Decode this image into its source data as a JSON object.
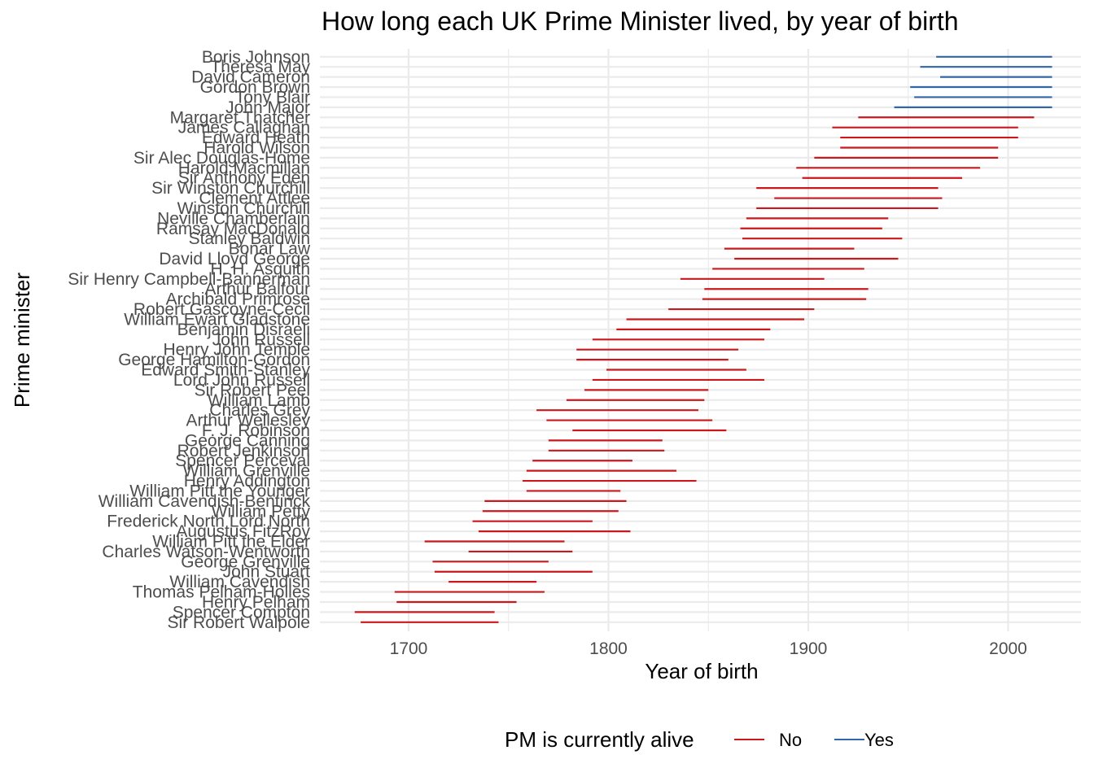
{
  "chart_data": {
    "type": "bar",
    "subtype": "range (lifespan segments)",
    "title": "How long each UK Prime Minister lived, by year of birth",
    "xlabel": "Year of birth",
    "ylabel": "Prime minister",
    "xlim": [
      1655,
      2040
    ],
    "xticks": [
      1700,
      1800,
      1900,
      2000
    ],
    "grid": true,
    "legend": {
      "title": "PM is currently alive",
      "position": "bottom",
      "entries": [
        {
          "label": "No",
          "color": "#CB181D"
        },
        {
          "label": "Yes",
          "color": "#3366A6"
        }
      ]
    },
    "series": [
      {
        "name": "No",
        "color": "#CB181D"
      },
      {
        "name": "Yes",
        "color": "#3366A6"
      }
    ],
    "items": [
      {
        "name": "Boris Johnson",
        "start": 1964,
        "end": 2022,
        "alive": "Yes"
      },
      {
        "name": "Theresa May",
        "start": 1956,
        "end": 2022,
        "alive": "Yes"
      },
      {
        "name": "David Cameron",
        "start": 1966,
        "end": 2022,
        "alive": "Yes"
      },
      {
        "name": "Gordon Brown",
        "start": 1951,
        "end": 2022,
        "alive": "Yes"
      },
      {
        "name": "Tony Blair",
        "start": 1953,
        "end": 2022,
        "alive": "Yes"
      },
      {
        "name": "John Major",
        "start": 1943,
        "end": 2022,
        "alive": "Yes"
      },
      {
        "name": "Margaret Thatcher",
        "start": 1925,
        "end": 2013,
        "alive": "No"
      },
      {
        "name": "James Callaghan",
        "start": 1912,
        "end": 2005,
        "alive": "No"
      },
      {
        "name": "Edward Heath",
        "start": 1916,
        "end": 2005,
        "alive": "No"
      },
      {
        "name": "Harold Wilson",
        "start": 1916,
        "end": 1995,
        "alive": "No"
      },
      {
        "name": "Sir Alec Douglas-Home",
        "start": 1903,
        "end": 1995,
        "alive": "No"
      },
      {
        "name": "Harold Macmillan",
        "start": 1894,
        "end": 1986,
        "alive": "No"
      },
      {
        "name": "Sir Anthony Eden",
        "start": 1897,
        "end": 1977,
        "alive": "No"
      },
      {
        "name": "Sir Winston Churchill",
        "start": 1874,
        "end": 1965,
        "alive": "No"
      },
      {
        "name": "Clement Attlee",
        "start": 1883,
        "end": 1967,
        "alive": "No"
      },
      {
        "name": "Winston Churchill",
        "start": 1874,
        "end": 1965,
        "alive": "No"
      },
      {
        "name": "Neville Chamberlain",
        "start": 1869,
        "end": 1940,
        "alive": "No"
      },
      {
        "name": "Ramsay MacDonald",
        "start": 1866,
        "end": 1937,
        "alive": "No"
      },
      {
        "name": "Stanley Baldwin",
        "start": 1867,
        "end": 1947,
        "alive": "No"
      },
      {
        "name": "Bonar Law",
        "start": 1858,
        "end": 1923,
        "alive": "No"
      },
      {
        "name": "David Lloyd George",
        "start": 1863,
        "end": 1945,
        "alive": "No"
      },
      {
        "name": "H. H. Asquith",
        "start": 1852,
        "end": 1928,
        "alive": "No"
      },
      {
        "name": "Sir Henry Campbell-Bannerman",
        "start": 1836,
        "end": 1908,
        "alive": "No"
      },
      {
        "name": "Arthur Balfour",
        "start": 1848,
        "end": 1930,
        "alive": "No"
      },
      {
        "name": "Archibald Primrose",
        "start": 1847,
        "end": 1929,
        "alive": "No"
      },
      {
        "name": "Robert Gascoyne-Cecil",
        "start": 1830,
        "end": 1903,
        "alive": "No"
      },
      {
        "name": "William Ewart Gladstone",
        "start": 1809,
        "end": 1898,
        "alive": "No"
      },
      {
        "name": "Benjamin Disraeli",
        "start": 1804,
        "end": 1881,
        "alive": "No"
      },
      {
        "name": "John Russell",
        "start": 1792,
        "end": 1878,
        "alive": "No"
      },
      {
        "name": "Henry John Temple",
        "start": 1784,
        "end": 1865,
        "alive": "No"
      },
      {
        "name": "George Hamilton-Gordon",
        "start": 1784,
        "end": 1860,
        "alive": "No"
      },
      {
        "name": "Edward Smith-Stanley",
        "start": 1799,
        "end": 1869,
        "alive": "No"
      },
      {
        "name": "Lord John Russell",
        "start": 1792,
        "end": 1878,
        "alive": "No"
      },
      {
        "name": "Sir Robert Peel",
        "start": 1788,
        "end": 1850,
        "alive": "No"
      },
      {
        "name": "William Lamb",
        "start": 1779,
        "end": 1848,
        "alive": "No"
      },
      {
        "name": "Charles Grey",
        "start": 1764,
        "end": 1845,
        "alive": "No"
      },
      {
        "name": "Arthur Wellesley",
        "start": 1769,
        "end": 1852,
        "alive": "No"
      },
      {
        "name": "F. J. Robinson",
        "start": 1782,
        "end": 1859,
        "alive": "No"
      },
      {
        "name": "George Canning",
        "start": 1770,
        "end": 1827,
        "alive": "No"
      },
      {
        "name": "Robert Jenkinson",
        "start": 1770,
        "end": 1828,
        "alive": "No"
      },
      {
        "name": "Spencer Perceval",
        "start": 1762,
        "end": 1812,
        "alive": "No"
      },
      {
        "name": "William Grenville",
        "start": 1759,
        "end": 1834,
        "alive": "No"
      },
      {
        "name": "Henry Addington",
        "start": 1757,
        "end": 1844,
        "alive": "No"
      },
      {
        "name": "William Pitt the Younger",
        "start": 1759,
        "end": 1806,
        "alive": "No"
      },
      {
        "name": "William Cavendish-Bentinck",
        "start": 1738,
        "end": 1809,
        "alive": "No"
      },
      {
        "name": "William Petty",
        "start": 1737,
        "end": 1805,
        "alive": "No"
      },
      {
        "name": "Frederick North Lord North",
        "start": 1732,
        "end": 1792,
        "alive": "No"
      },
      {
        "name": "Augustus FitzRoy",
        "start": 1735,
        "end": 1811,
        "alive": "No"
      },
      {
        "name": "William Pitt the Elder",
        "start": 1708,
        "end": 1778,
        "alive": "No"
      },
      {
        "name": "Charles Watson-Wentworth",
        "start": 1730,
        "end": 1782,
        "alive": "No"
      },
      {
        "name": "George Grenville",
        "start": 1712,
        "end": 1770,
        "alive": "No"
      },
      {
        "name": "John Stuart",
        "start": 1713,
        "end": 1792,
        "alive": "No"
      },
      {
        "name": "William Cavendish",
        "start": 1720,
        "end": 1764,
        "alive": "No"
      },
      {
        "name": "Thomas Pelham-Holles",
        "start": 1693,
        "end": 1768,
        "alive": "No"
      },
      {
        "name": "Henry Pelham",
        "start": 1694,
        "end": 1754,
        "alive": "No"
      },
      {
        "name": "Spencer Compton",
        "start": 1673,
        "end": 1743,
        "alive": "No"
      },
      {
        "name": "Sir Robert Walpole",
        "start": 1676,
        "end": 1745,
        "alive": "No"
      }
    ]
  }
}
